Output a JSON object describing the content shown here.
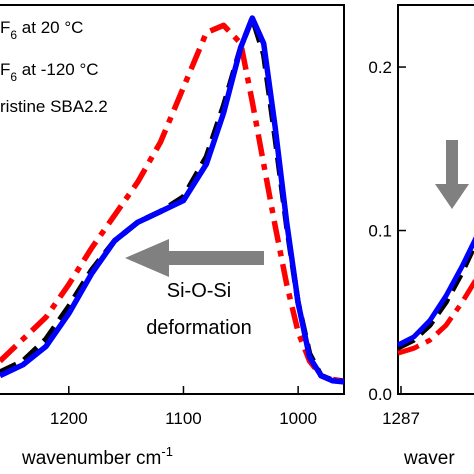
{
  "chart_data": [
    {
      "type": "line",
      "panel": "left",
      "xlabel": "wavenumber cm",
      "xlabel_superscript": "-1",
      "ylabel": "",
      "x_reversed": true,
      "xlim": [
        1260,
        960
      ],
      "ylim": [
        0,
        1
      ],
      "x_ticks": [
        1200,
        1100,
        1000
      ],
      "x_tick_labels": [
        "1200",
        "1100",
        "1000"
      ],
      "legend_placement": "top-left",
      "legend": [
        {
          "text": "F",
          "sub": "6",
          "tail": " at 20 °C",
          "color": "#ff0000",
          "style": "dash-dot"
        },
        {
          "text": "F",
          "sub": "6",
          "tail": " at -120 °C",
          "color": "#000000",
          "style": "dashed"
        },
        {
          "text": "ristine SBA2.2",
          "sub": "",
          "tail": "",
          "color": "#0000ff",
          "style": "solid"
        }
      ],
      "annotation": {
        "line1": "Si-O-Si",
        "line2": "deformation",
        "arrow": "left",
        "arrow_color": "#808080"
      },
      "series": [
        {
          "color": "#ff0000",
          "style": "dash-dot",
          "x": [
            1260,
            1240,
            1220,
            1200,
            1180,
            1160,
            1140,
            1120,
            1100,
            1080,
            1065,
            1050,
            1040,
            1030,
            1020,
            1010,
            1000,
            990,
            980,
            970,
            960
          ],
          "y": [
            0.06,
            0.12,
            0.18,
            0.27,
            0.37,
            0.46,
            0.55,
            0.66,
            0.81,
            0.96,
            0.98,
            0.93,
            0.77,
            0.6,
            0.43,
            0.27,
            0.14,
            0.06,
            0.02,
            0.01,
            0.005
          ]
        },
        {
          "color": "#000000",
          "style": "dashed",
          "x": [
            1260,
            1240,
            1220,
            1200,
            1180,
            1160,
            1140,
            1120,
            1100,
            1080,
            1065,
            1050,
            1040,
            1030,
            1020,
            1010,
            1000,
            990,
            980,
            970,
            960
          ],
          "y": [
            0.03,
            0.06,
            0.12,
            0.21,
            0.31,
            0.39,
            0.44,
            0.47,
            0.51,
            0.62,
            0.76,
            0.92,
            1.0,
            0.9,
            0.67,
            0.43,
            0.22,
            0.08,
            0.02,
            0.008,
            0.004
          ]
        },
        {
          "color": "#0000ff",
          "style": "solid",
          "x": [
            1260,
            1240,
            1220,
            1200,
            1180,
            1160,
            1140,
            1120,
            1100,
            1080,
            1065,
            1050,
            1040,
            1030,
            1020,
            1010,
            1000,
            990,
            980,
            970,
            960
          ],
          "y": [
            0.02,
            0.05,
            0.1,
            0.19,
            0.3,
            0.39,
            0.44,
            0.47,
            0.5,
            0.6,
            0.74,
            0.92,
            1.0,
            0.93,
            0.7,
            0.44,
            0.22,
            0.07,
            0.02,
            0.006,
            0.003
          ]
        }
      ]
    },
    {
      "type": "line",
      "panel": "right",
      "xlabel": "waver",
      "ylabel": "",
      "ylim": [
        0,
        0.23
      ],
      "y_ticks": [
        0.0,
        0.1,
        0.2
      ],
      "y_tick_labels": [
        "0.0",
        "0.1",
        "0.2"
      ],
      "x_ticks": [
        1287
      ],
      "x_tick_labels": [
        "1287"
      ],
      "annotation": {
        "arrow": "down",
        "arrow_color": "#808080"
      },
      "series": [
        {
          "color": "#ff0000",
          "style": "dash-dot",
          "x": [
            0,
            0.2,
            0.4,
            0.6,
            0.8,
            1.0
          ],
          "y": [
            0.025,
            0.028,
            0.033,
            0.042,
            0.056,
            0.072
          ]
        },
        {
          "color": "#000000",
          "style": "dashed",
          "x": [
            0,
            0.2,
            0.4,
            0.6,
            0.8,
            1.0
          ],
          "y": [
            0.028,
            0.033,
            0.042,
            0.056,
            0.074,
            0.095
          ]
        },
        {
          "color": "#0000ff",
          "style": "solid",
          "x": [
            0,
            0.2,
            0.4,
            0.6,
            0.8,
            1.0
          ],
          "y": [
            0.03,
            0.035,
            0.045,
            0.06,
            0.078,
            0.098
          ]
        }
      ]
    }
  ]
}
